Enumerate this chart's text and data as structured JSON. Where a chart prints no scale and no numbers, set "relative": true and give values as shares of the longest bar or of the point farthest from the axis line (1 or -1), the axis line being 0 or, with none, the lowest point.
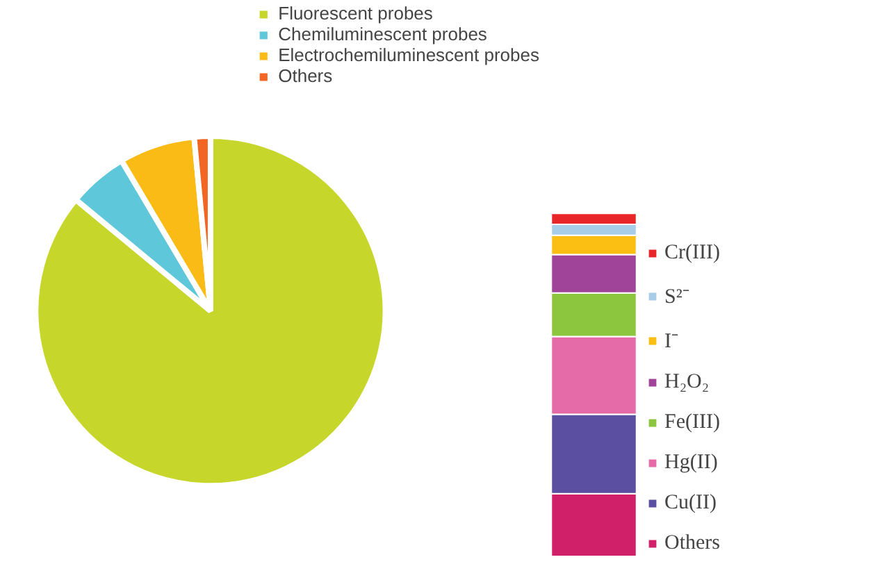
{
  "chart_data": [
    {
      "type": "pie",
      "categories": [
        "Fluorescent probes",
        "Chemiluminescent probes",
        "Electrochemiluminescent probes",
        "Others"
      ],
      "values": [
        86,
        5.5,
        7,
        1.5
      ],
      "colors": [
        "#c6d62a",
        "#5ec8da",
        "#fbbb16",
        "#f26522"
      ],
      "legend": "top right"
    },
    {
      "type": "bar",
      "stacked": true,
      "relative": true,
      "categories": [
        null
      ],
      "legend": "right",
      "series": [
        {
          "name": "Others",
          "color": "#d0206a",
          "values": [
            0.183
          ]
        },
        {
          "name": "Cu(II)",
          "color": "#5a4fa0",
          "values": [
            0.231
          ]
        },
        {
          "name": "Hg(II)",
          "color": "#e56aa8",
          "values": [
            0.227
          ]
        },
        {
          "name": "Fe(III)",
          "color": "#8cc63e",
          "values": [
            0.127
          ]
        },
        {
          "name": "H₂O₂",
          "color": "#a0449a",
          "values": [
            0.112
          ]
        },
        {
          "name": "I⁻",
          "color": "#fbbf14",
          "values": [
            0.056
          ]
        },
        {
          "name": "S²⁻",
          "color": "#a8cde8",
          "values": [
            0.032
          ]
        },
        {
          "name": "Cr(III)",
          "color": "#e8262a",
          "values": [
            0.032
          ]
        }
      ]
    }
  ]
}
